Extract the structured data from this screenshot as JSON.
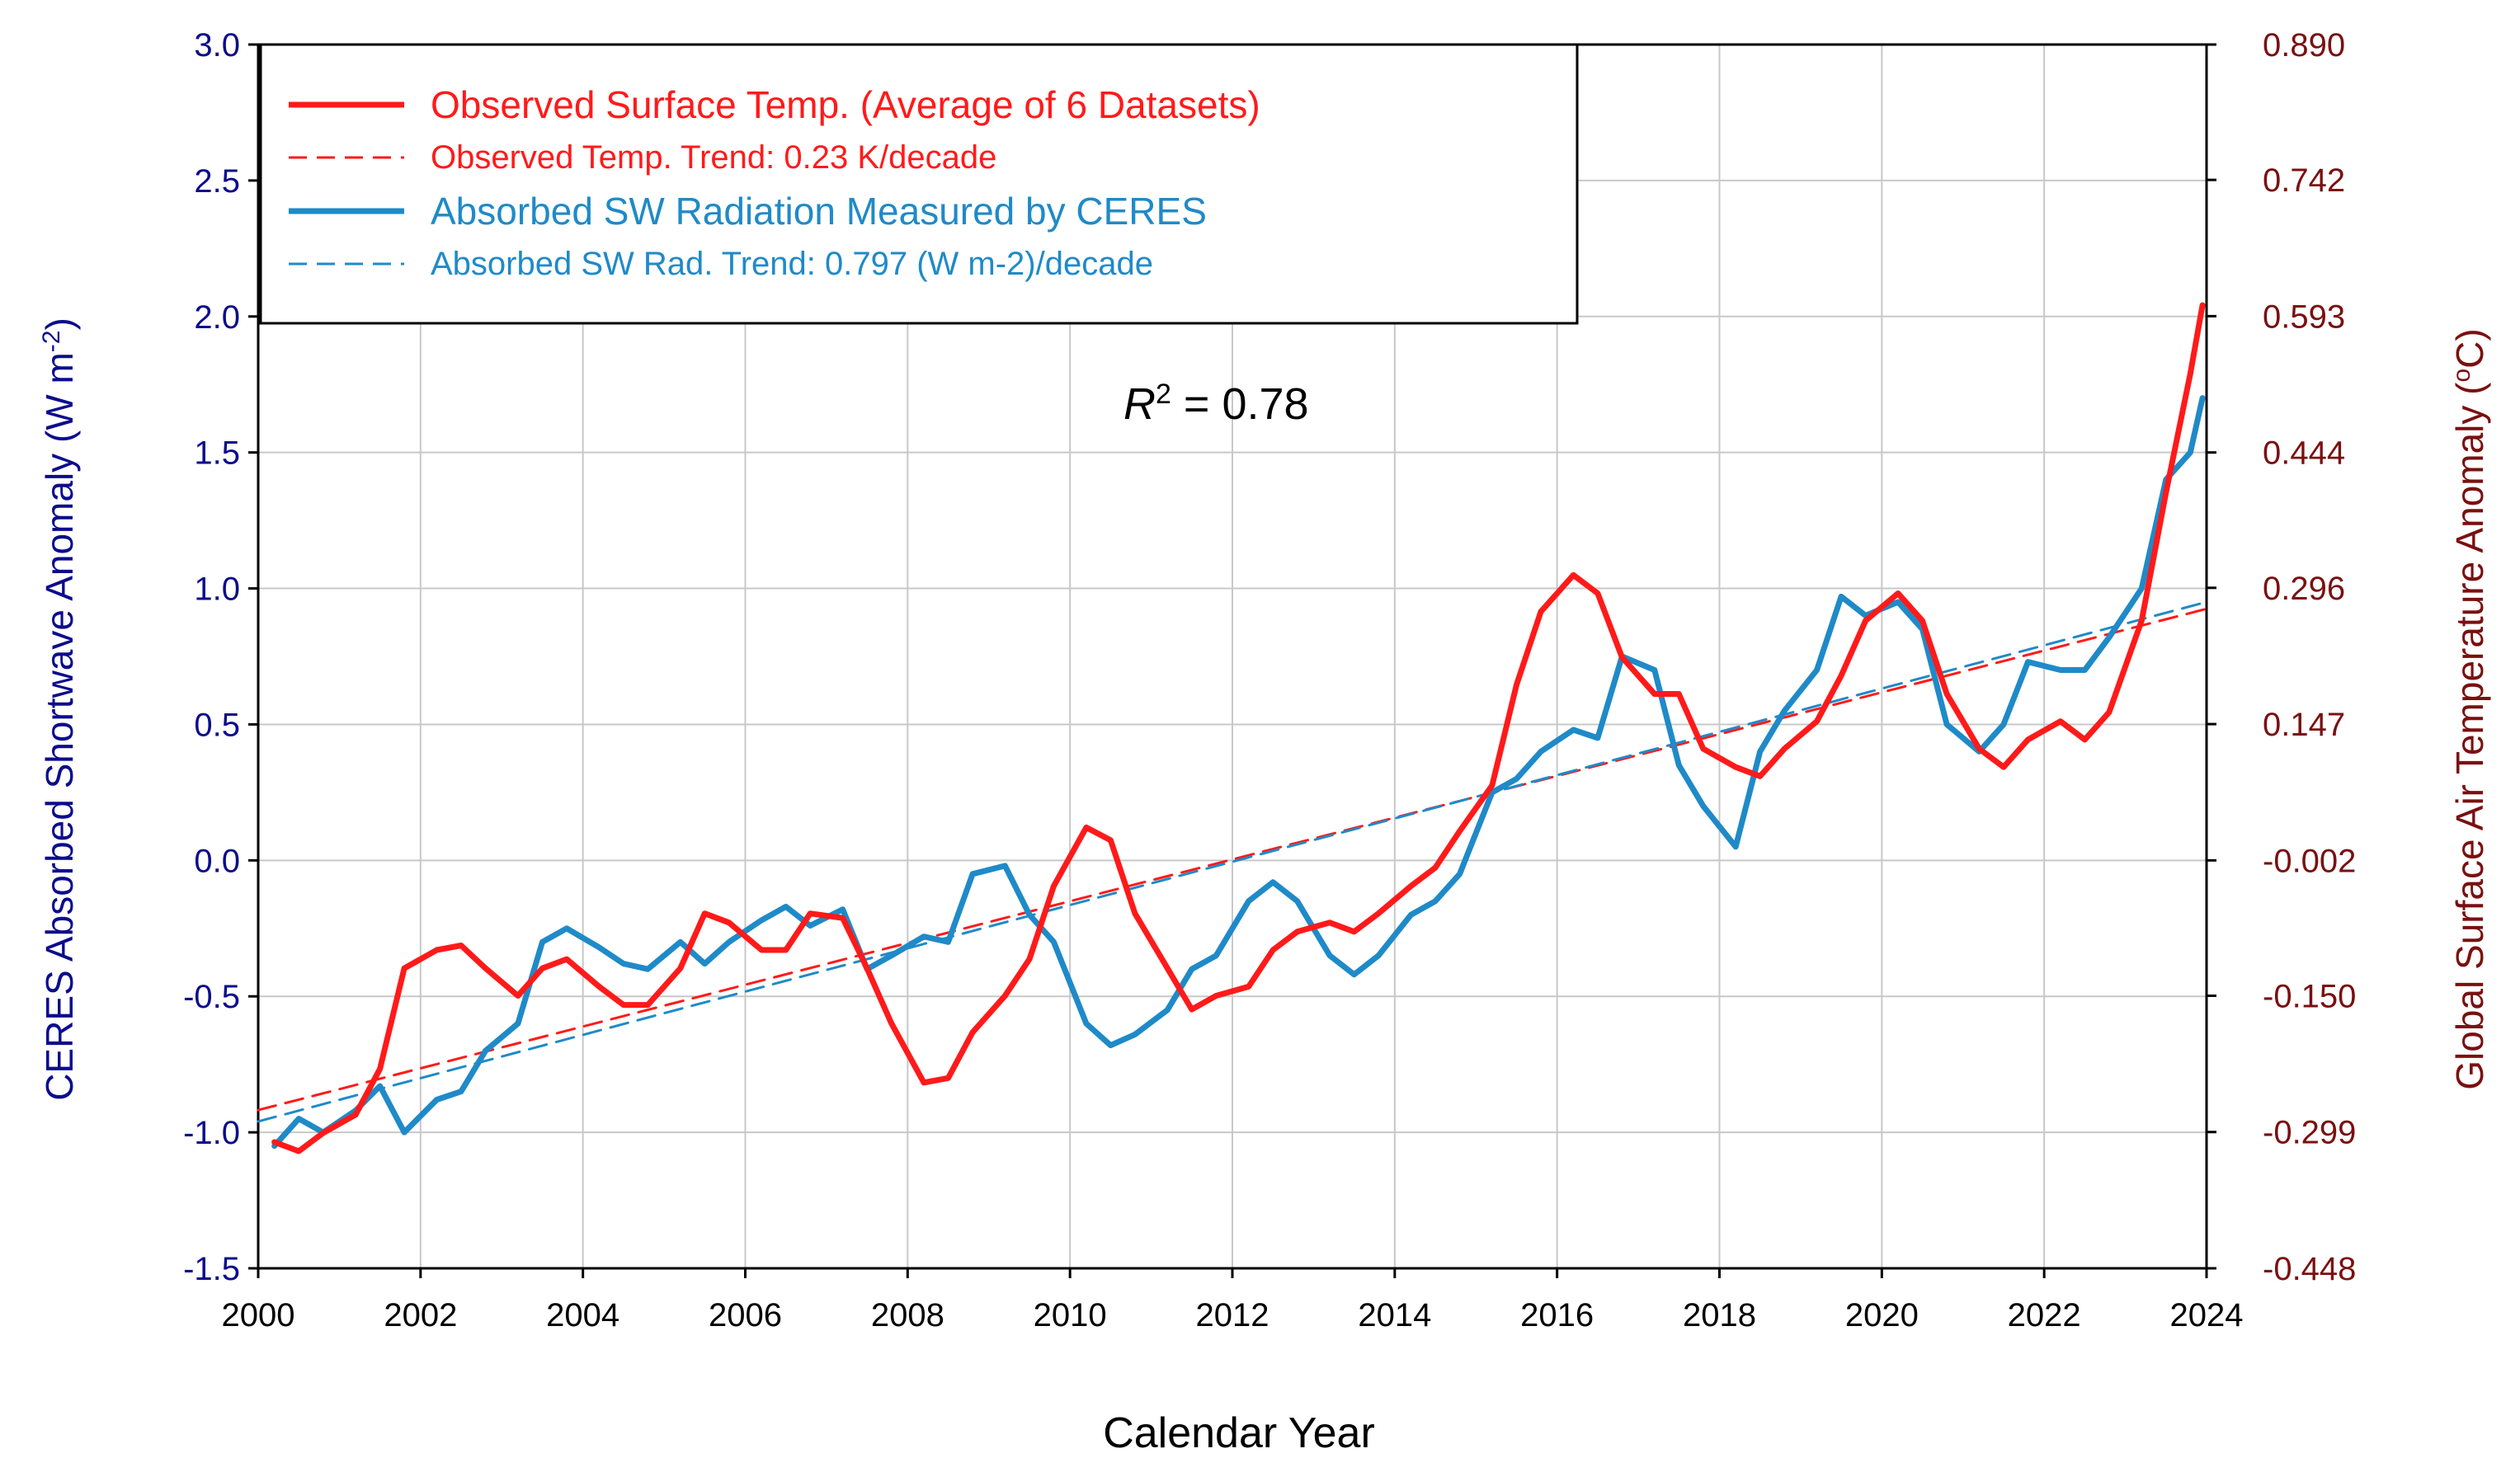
{
  "chart_data": {
    "type": "line",
    "xlabel": "Calendar Year",
    "ylabel_left": "CERES Absorbed Shortwave Anomaly (W m^-2)",
    "ylabel_left_main": "CERES Absorbed Shortwave Anomaly (W m",
    "ylabel_left_sup": "-2",
    "ylabel_left_close": ")",
    "ylabel_right": "Global Surface Air Temperature Anomaly (°C)",
    "ylabel_right_main": "Global Surface Air Temperature Anomaly (",
    "ylabel_right_sup": "o",
    "ylabel_right_close": "C)",
    "xlim": [
      2000,
      2024
    ],
    "ylim_left": [
      -1.5,
      3.0
    ],
    "ylim_right": [
      -0.448,
      0.89
    ],
    "x_ticks": [
      "2000",
      "2002",
      "2004",
      "2006",
      "2008",
      "2010",
      "2012",
      "2014",
      "2016",
      "2018",
      "2020",
      "2022",
      "2024"
    ],
    "y_left_ticks": [
      "3.0",
      "2.5",
      "2.0",
      "1.5",
      "1.0",
      "0.5",
      "0.0",
      "-0.5",
      "-1.0",
      "-1.5"
    ],
    "y_right_ticks": [
      "0.890",
      "0.742",
      "0.593",
      "0.444",
      "0.296",
      "0.147",
      "-0.002",
      "-0.150",
      "-0.299",
      "-0.448"
    ],
    "grid": true,
    "legend_position": "top-left",
    "annotation": {
      "prefix": "R",
      "sup": "2",
      "suffix": " = 0.78"
    },
    "series": [
      {
        "name": "Observed Surface Temp. (Average of 6 Datasets)",
        "axis": "right",
        "color": "#ff1a1a",
        "style": "solid",
        "points": [
          [
            2000.2,
            -0.31
          ],
          [
            2000.5,
            -0.32
          ],
          [
            2000.8,
            -0.3
          ],
          [
            2001.2,
            -0.28
          ],
          [
            2001.5,
            -0.23
          ],
          [
            2001.8,
            -0.12
          ],
          [
            2002.2,
            -0.1
          ],
          [
            2002.5,
            -0.095
          ],
          [
            2002.8,
            -0.12
          ],
          [
            2003.2,
            -0.15
          ],
          [
            2003.5,
            -0.12
          ],
          [
            2003.8,
            -0.11
          ],
          [
            2004.2,
            -0.14
          ],
          [
            2004.5,
            -0.16
          ],
          [
            2004.8,
            -0.16
          ],
          [
            2005.2,
            -0.12
          ],
          [
            2005.5,
            -0.06
          ],
          [
            2005.8,
            -0.07
          ],
          [
            2006.2,
            -0.1
          ],
          [
            2006.5,
            -0.1
          ],
          [
            2006.8,
            -0.06
          ],
          [
            2007.2,
            -0.065
          ],
          [
            2007.5,
            -0.12
          ],
          [
            2007.8,
            -0.18
          ],
          [
            2008.2,
            -0.245
          ],
          [
            2008.5,
            -0.24
          ],
          [
            2008.8,
            -0.19
          ],
          [
            2009.2,
            -0.15
          ],
          [
            2009.5,
            -0.11
          ],
          [
            2009.8,
            -0.03
          ],
          [
            2010.2,
            0.034
          ],
          [
            2010.5,
            0.02
          ],
          [
            2010.8,
            -0.06
          ],
          [
            2011.2,
            -0.12
          ],
          [
            2011.5,
            -0.165
          ],
          [
            2011.8,
            -0.15
          ],
          [
            2012.2,
            -0.14
          ],
          [
            2012.5,
            -0.1
          ],
          [
            2012.8,
            -0.08
          ],
          [
            2013.2,
            -0.07
          ],
          [
            2013.5,
            -0.08
          ],
          [
            2013.8,
            -0.06
          ],
          [
            2014.2,
            -0.03
          ],
          [
            2014.5,
            -0.01
          ],
          [
            2014.8,
            0.03
          ],
          [
            2015.2,
            0.08
          ],
          [
            2015.5,
            0.19
          ],
          [
            2015.8,
            0.27
          ],
          [
            2016.2,
            0.31
          ],
          [
            2016.5,
            0.29
          ],
          [
            2016.8,
            0.22
          ],
          [
            2017.2,
            0.18
          ],
          [
            2017.5,
            0.18
          ],
          [
            2017.8,
            0.12
          ],
          [
            2018.2,
            0.1
          ],
          [
            2018.5,
            0.09
          ],
          [
            2018.8,
            0.12
          ],
          [
            2019.2,
            0.15
          ],
          [
            2019.5,
            0.2
          ],
          [
            2019.8,
            0.26
          ],
          [
            2020.2,
            0.29
          ],
          [
            2020.5,
            0.26
          ],
          [
            2020.8,
            0.18
          ],
          [
            2021.2,
            0.12
          ],
          [
            2021.5,
            0.1
          ],
          [
            2021.8,
            0.13
          ],
          [
            2022.2,
            0.15
          ],
          [
            2022.5,
            0.13
          ],
          [
            2022.8,
            0.16
          ],
          [
            2023.2,
            0.26
          ],
          [
            2023.5,
            0.4
          ],
          [
            2023.8,
            0.53
          ],
          [
            2023.95,
            0.605
          ]
        ]
      },
      {
        "name": "Observed Temp. Trend: 0.23 K/decade",
        "axis": "right",
        "color": "#ff1a1a",
        "style": "dashed",
        "points": [
          [
            2000,
            -0.275
          ],
          [
            2024,
            0.273
          ]
        ]
      },
      {
        "name": "Absorbed SW Radiation Measured by CERES",
        "axis": "left",
        "color": "#1f8ac8",
        "style": "solid",
        "points": [
          [
            2000.2,
            -1.05
          ],
          [
            2000.5,
            -0.95
          ],
          [
            2000.8,
            -1.0
          ],
          [
            2001.2,
            -0.92
          ],
          [
            2001.5,
            -0.83
          ],
          [
            2001.8,
            -1.0
          ],
          [
            2002.2,
            -0.88
          ],
          [
            2002.5,
            -0.85
          ],
          [
            2002.8,
            -0.7
          ],
          [
            2003.2,
            -0.6
          ],
          [
            2003.5,
            -0.3
          ],
          [
            2003.8,
            -0.25
          ],
          [
            2004.2,
            -0.32
          ],
          [
            2004.5,
            -0.38
          ],
          [
            2004.8,
            -0.4
          ],
          [
            2005.2,
            -0.3
          ],
          [
            2005.5,
            -0.38
          ],
          [
            2005.8,
            -0.3
          ],
          [
            2006.2,
            -0.22
          ],
          [
            2006.5,
            -0.17
          ],
          [
            2006.8,
            -0.24
          ],
          [
            2007.2,
            -0.18
          ],
          [
            2007.5,
            -0.4
          ],
          [
            2007.8,
            -0.35
          ],
          [
            2008.2,
            -0.28
          ],
          [
            2008.5,
            -0.3
          ],
          [
            2008.8,
            -0.05
          ],
          [
            2009.2,
            -0.02
          ],
          [
            2009.5,
            -0.2
          ],
          [
            2009.8,
            -0.3
          ],
          [
            2010.2,
            -0.6
          ],
          [
            2010.5,
            -0.68
          ],
          [
            2010.8,
            -0.64
          ],
          [
            2011.2,
            -0.55
          ],
          [
            2011.5,
            -0.4
          ],
          [
            2011.8,
            -0.35
          ],
          [
            2012.2,
            -0.15
          ],
          [
            2012.5,
            -0.08
          ],
          [
            2012.8,
            -0.15
          ],
          [
            2013.2,
            -0.35
          ],
          [
            2013.5,
            -0.42
          ],
          [
            2013.8,
            -0.35
          ],
          [
            2014.2,
            -0.2
          ],
          [
            2014.5,
            -0.15
          ],
          [
            2014.8,
            -0.05
          ],
          [
            2015.2,
            0.25
          ],
          [
            2015.5,
            0.3
          ],
          [
            2015.8,
            0.4
          ],
          [
            2016.2,
            0.48
          ],
          [
            2016.5,
            0.45
          ],
          [
            2016.8,
            0.75
          ],
          [
            2017.2,
            0.7
          ],
          [
            2017.5,
            0.35
          ],
          [
            2017.8,
            0.2
          ],
          [
            2018.2,
            0.05
          ],
          [
            2018.5,
            0.4
          ],
          [
            2018.8,
            0.55
          ],
          [
            2019.2,
            0.7
          ],
          [
            2019.5,
            0.97
          ],
          [
            2019.8,
            0.9
          ],
          [
            2020.2,
            0.95
          ],
          [
            2020.5,
            0.85
          ],
          [
            2020.8,
            0.5
          ],
          [
            2021.2,
            0.4
          ],
          [
            2021.5,
            0.5
          ],
          [
            2021.8,
            0.73
          ],
          [
            2022.2,
            0.7
          ],
          [
            2022.5,
            0.7
          ],
          [
            2022.8,
            0.82
          ],
          [
            2023.2,
            1.0
          ],
          [
            2023.5,
            1.4
          ],
          [
            2023.8,
            1.5
          ],
          [
            2023.95,
            1.7
          ]
        ]
      },
      {
        "name": "Absorbed SW Rad. Trend: 0.797 (W m-2)/decade",
        "axis": "left",
        "color": "#1f8ac8",
        "style": "dashed",
        "points": [
          [
            2000,
            -0.96
          ],
          [
            2024,
            0.95
          ]
        ]
      }
    ]
  }
}
